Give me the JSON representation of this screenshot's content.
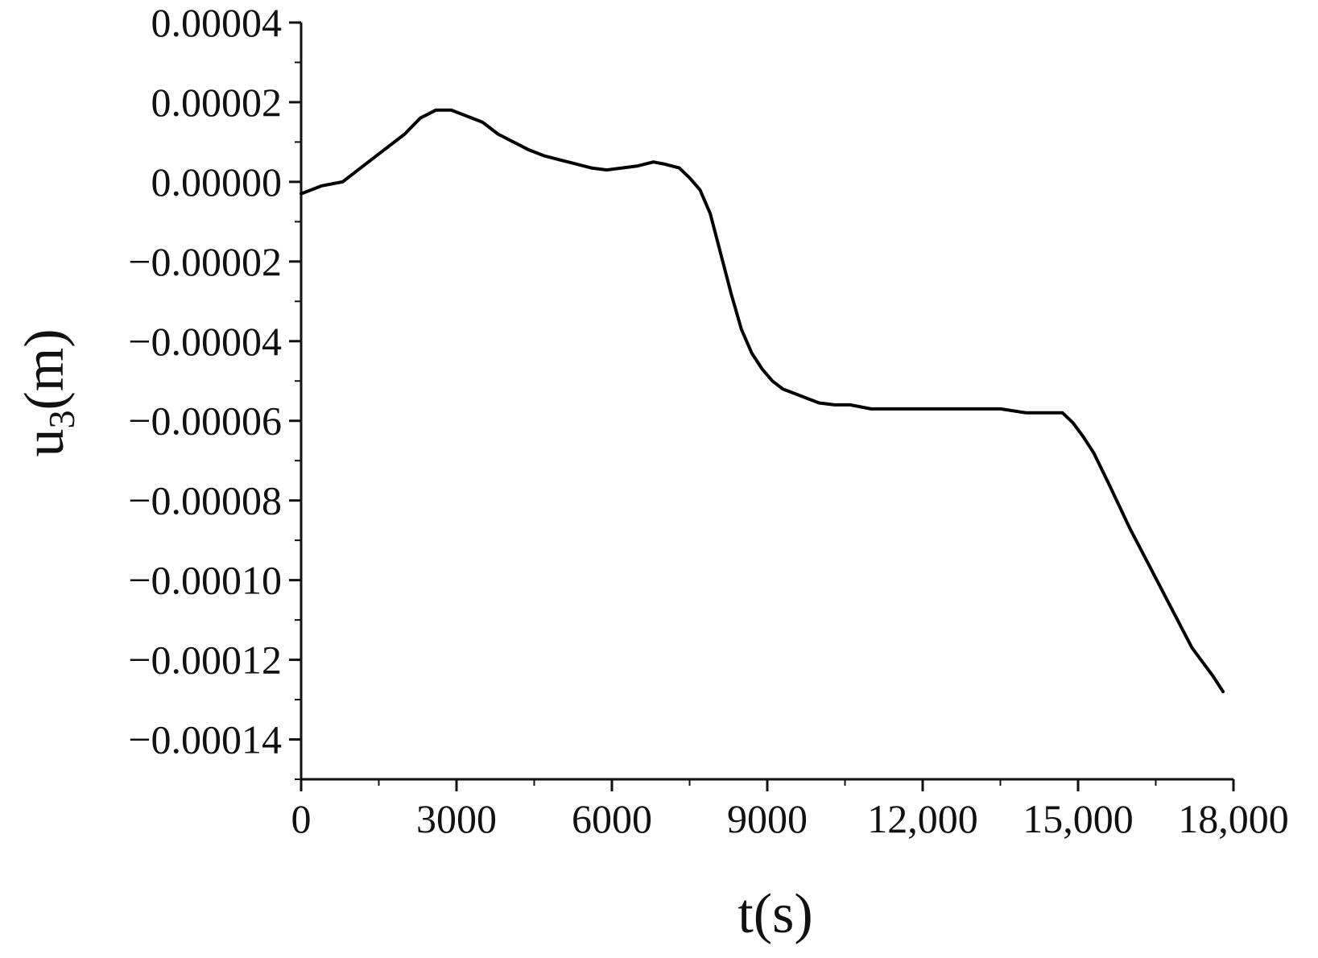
{
  "chart_data": {
    "type": "line",
    "title": "",
    "xlabel": "t(s)",
    "ylabel_main": "u",
    "ylabel_sub": "3",
    "ylabel_tail": "(m)",
    "xlim": [
      0,
      18000
    ],
    "ylim": [
      -0.00015,
      4e-05
    ],
    "x_ticks": [
      0,
      3000,
      6000,
      9000,
      12000,
      15000,
      18000
    ],
    "x_tick_labels": [
      "0",
      "3000",
      "6000",
      "9000",
      "12,000",
      "15,000",
      "18,000"
    ],
    "y_ticks": [
      4e-05,
      2e-05,
      0.0,
      -2e-05,
      -4e-05,
      -6e-05,
      -8e-05,
      -0.0001,
      -0.00012,
      -0.00014
    ],
    "y_tick_labels": [
      "0.00004",
      "0.00002",
      "0.00000",
      "−0.00002",
      "−0.00004",
      "−0.00006",
      "−0.00008",
      "−0.00010",
      "−0.00012",
      "−0.00014"
    ],
    "grid": false,
    "legend": "none",
    "line_color": "#000000",
    "series": [
      {
        "x": [
          0,
          400,
          800,
          1200,
          1600,
          2000,
          2300,
          2600,
          2900,
          3200,
          3500,
          3800,
          4100,
          4400,
          4700,
          5000,
          5300,
          5600,
          5900,
          6200,
          6500,
          6800,
          7000,
          7300,
          7500,
          7700,
          7900,
          8100,
          8300,
          8500,
          8700,
          8900,
          9100,
          9300,
          9500,
          9700,
          10000,
          10300,
          10600,
          11000,
          11300,
          11600,
          12000,
          12500,
          13000,
          13500,
          14000,
          14500,
          14700,
          14900,
          15100,
          15300,
          15600,
          16000,
          16400,
          16800,
          17200,
          17600,
          17800
        ],
        "y": [
          -3e-06,
          -1e-06,
          0.0,
          4e-06,
          8e-06,
          1.2e-05,
          1.6e-05,
          1.8e-05,
          1.8e-05,
          1.65e-05,
          1.5e-05,
          1.2e-05,
          1e-05,
          8e-06,
          6.5e-06,
          5.5e-06,
          4.5e-06,
          3.5e-06,
          3e-06,
          3.5e-06,
          4e-06,
          5e-06,
          4.5e-06,
          3.5e-06,
          1e-06,
          -2e-06,
          -8e-06,
          -1.8e-05,
          -2.8e-05,
          -3.7e-05,
          -4.3e-05,
          -4.7e-05,
          -5e-05,
          -5.2e-05,
          -5.3e-05,
          -5.4e-05,
          -5.55e-05,
          -5.6e-05,
          -5.6e-05,
          -5.7e-05,
          -5.7e-05,
          -5.7e-05,
          -5.7e-05,
          -5.7e-05,
          -5.7e-05,
          -5.7e-05,
          -5.8e-05,
          -5.8e-05,
          -5.8e-05,
          -6.05e-05,
          -6.4e-05,
          -6.8e-05,
          -7.6e-05,
          -8.7e-05,
          -9.7e-05,
          -0.000107,
          -0.000117,
          -0.000124,
          -0.000128
        ]
      }
    ]
  }
}
